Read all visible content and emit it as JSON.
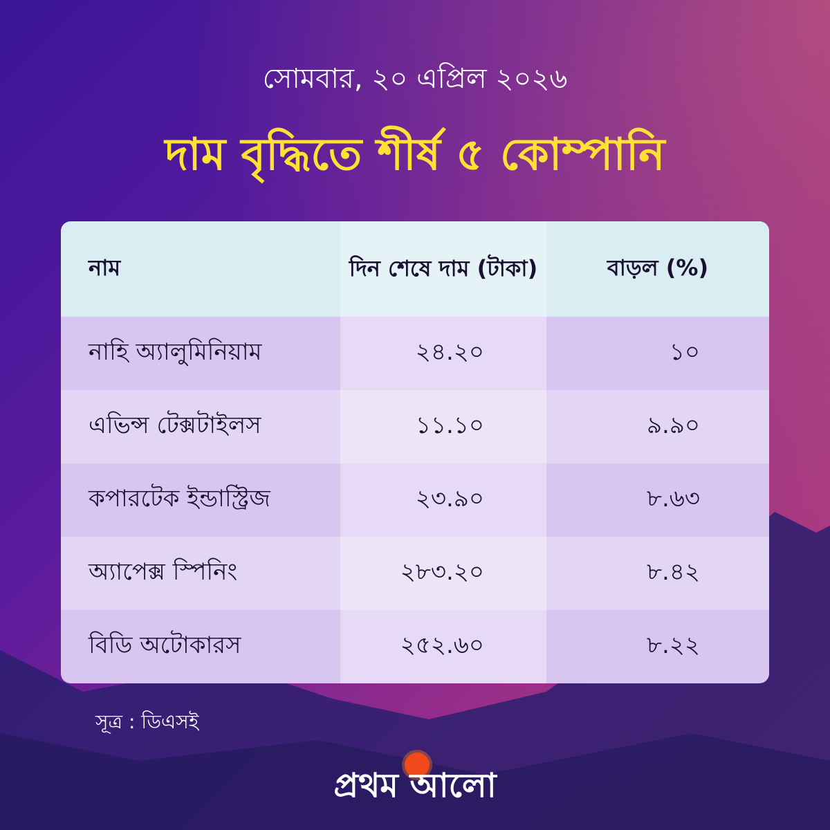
{
  "date": "সোমবার, ২০ এপ্রিল ২০২৬",
  "title": "দাম বৃদ্ধিতে শীর্ষ ৫ কোম্পানি",
  "table": {
    "headers": [
      "নাম",
      "দিন শেষে দাম (টাকা)",
      "বাড়ল (%)"
    ],
    "rows": [
      {
        "name": "নাহি অ্যালুমিনিয়াম",
        "price": "২৪.২০",
        "change": "১০"
      },
      {
        "name": "এভিন্স টেক্সটাইলস",
        "price": "১১.১০",
        "change": "৯.৯০"
      },
      {
        "name": "কপারটেক ইন্ডাস্ট্রিজ",
        "price": "২৩.৯০",
        "change": "৮.৬৩"
      },
      {
        "name": "অ্যাপেক্স স্পিনিং",
        "price": "২৮৩.২০",
        "change": "৮.৪২"
      },
      {
        "name": "বিডি অটোকারস",
        "price": "২৫২.৬০",
        "change": "৮.২২"
      }
    ]
  },
  "source": "সূত্র : ডিএসই",
  "logo": "প্রথম আলো",
  "colors": {
    "title": "#ffe135",
    "header_bg": "#d9edf3",
    "row_bg": "#d9c6f0"
  }
}
